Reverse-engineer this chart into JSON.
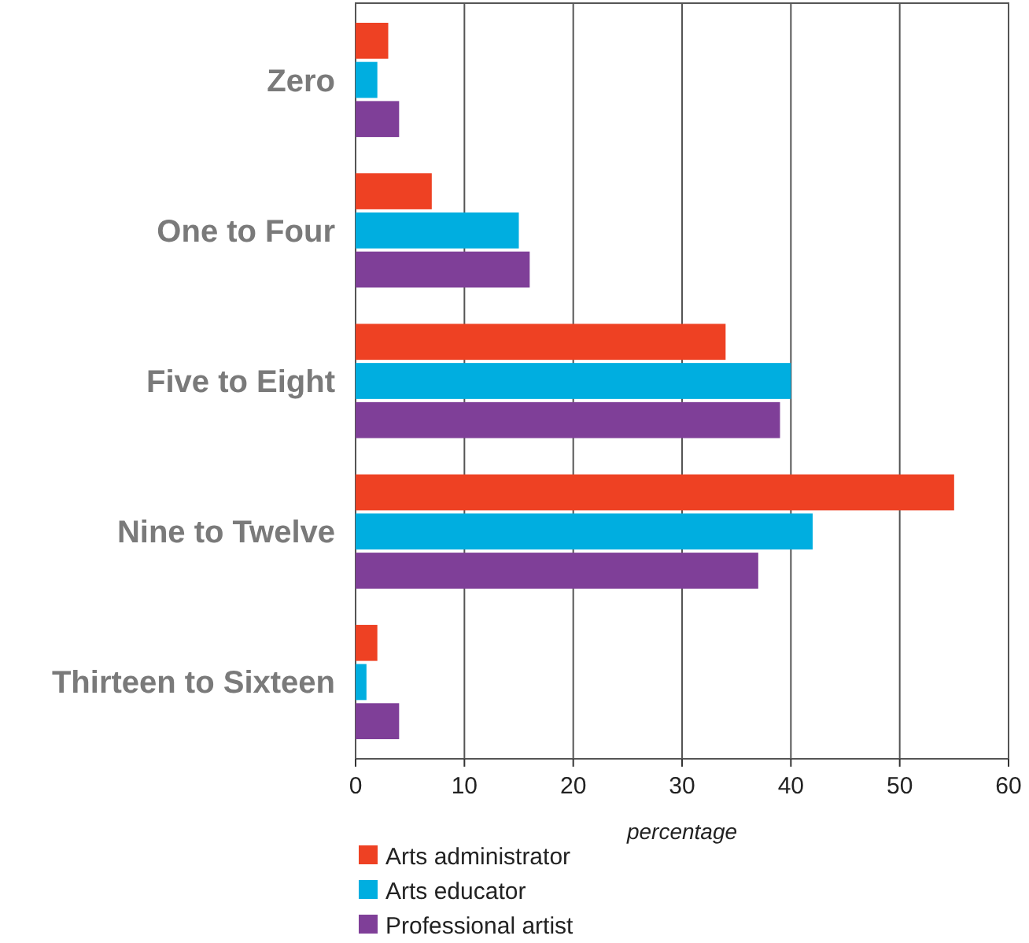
{
  "chart_data": {
    "type": "bar",
    "orientation": "horizontal",
    "xlabel": "percentage",
    "categories": [
      "Zero",
      "One to Four",
      "Five to Eight",
      "Nine to Twelve",
      "Thirteen to Sixteen"
    ],
    "series": [
      {
        "name": "Arts administrator",
        "color": "#ee4123",
        "values": [
          3,
          7,
          34,
          55,
          2
        ]
      },
      {
        "name": "Arts educator",
        "color": "#00aee0",
        "values": [
          2,
          15,
          40,
          42,
          1
        ]
      },
      {
        "name": "Professional artist",
        "color": "#7f3f98",
        "values": [
          4,
          16,
          39,
          37,
          4
        ]
      }
    ],
    "xlim": [
      0,
      60
    ],
    "xticks": [
      0,
      10,
      20,
      30,
      40,
      50,
      60
    ],
    "grid": "x",
    "legend": "bottom"
  }
}
